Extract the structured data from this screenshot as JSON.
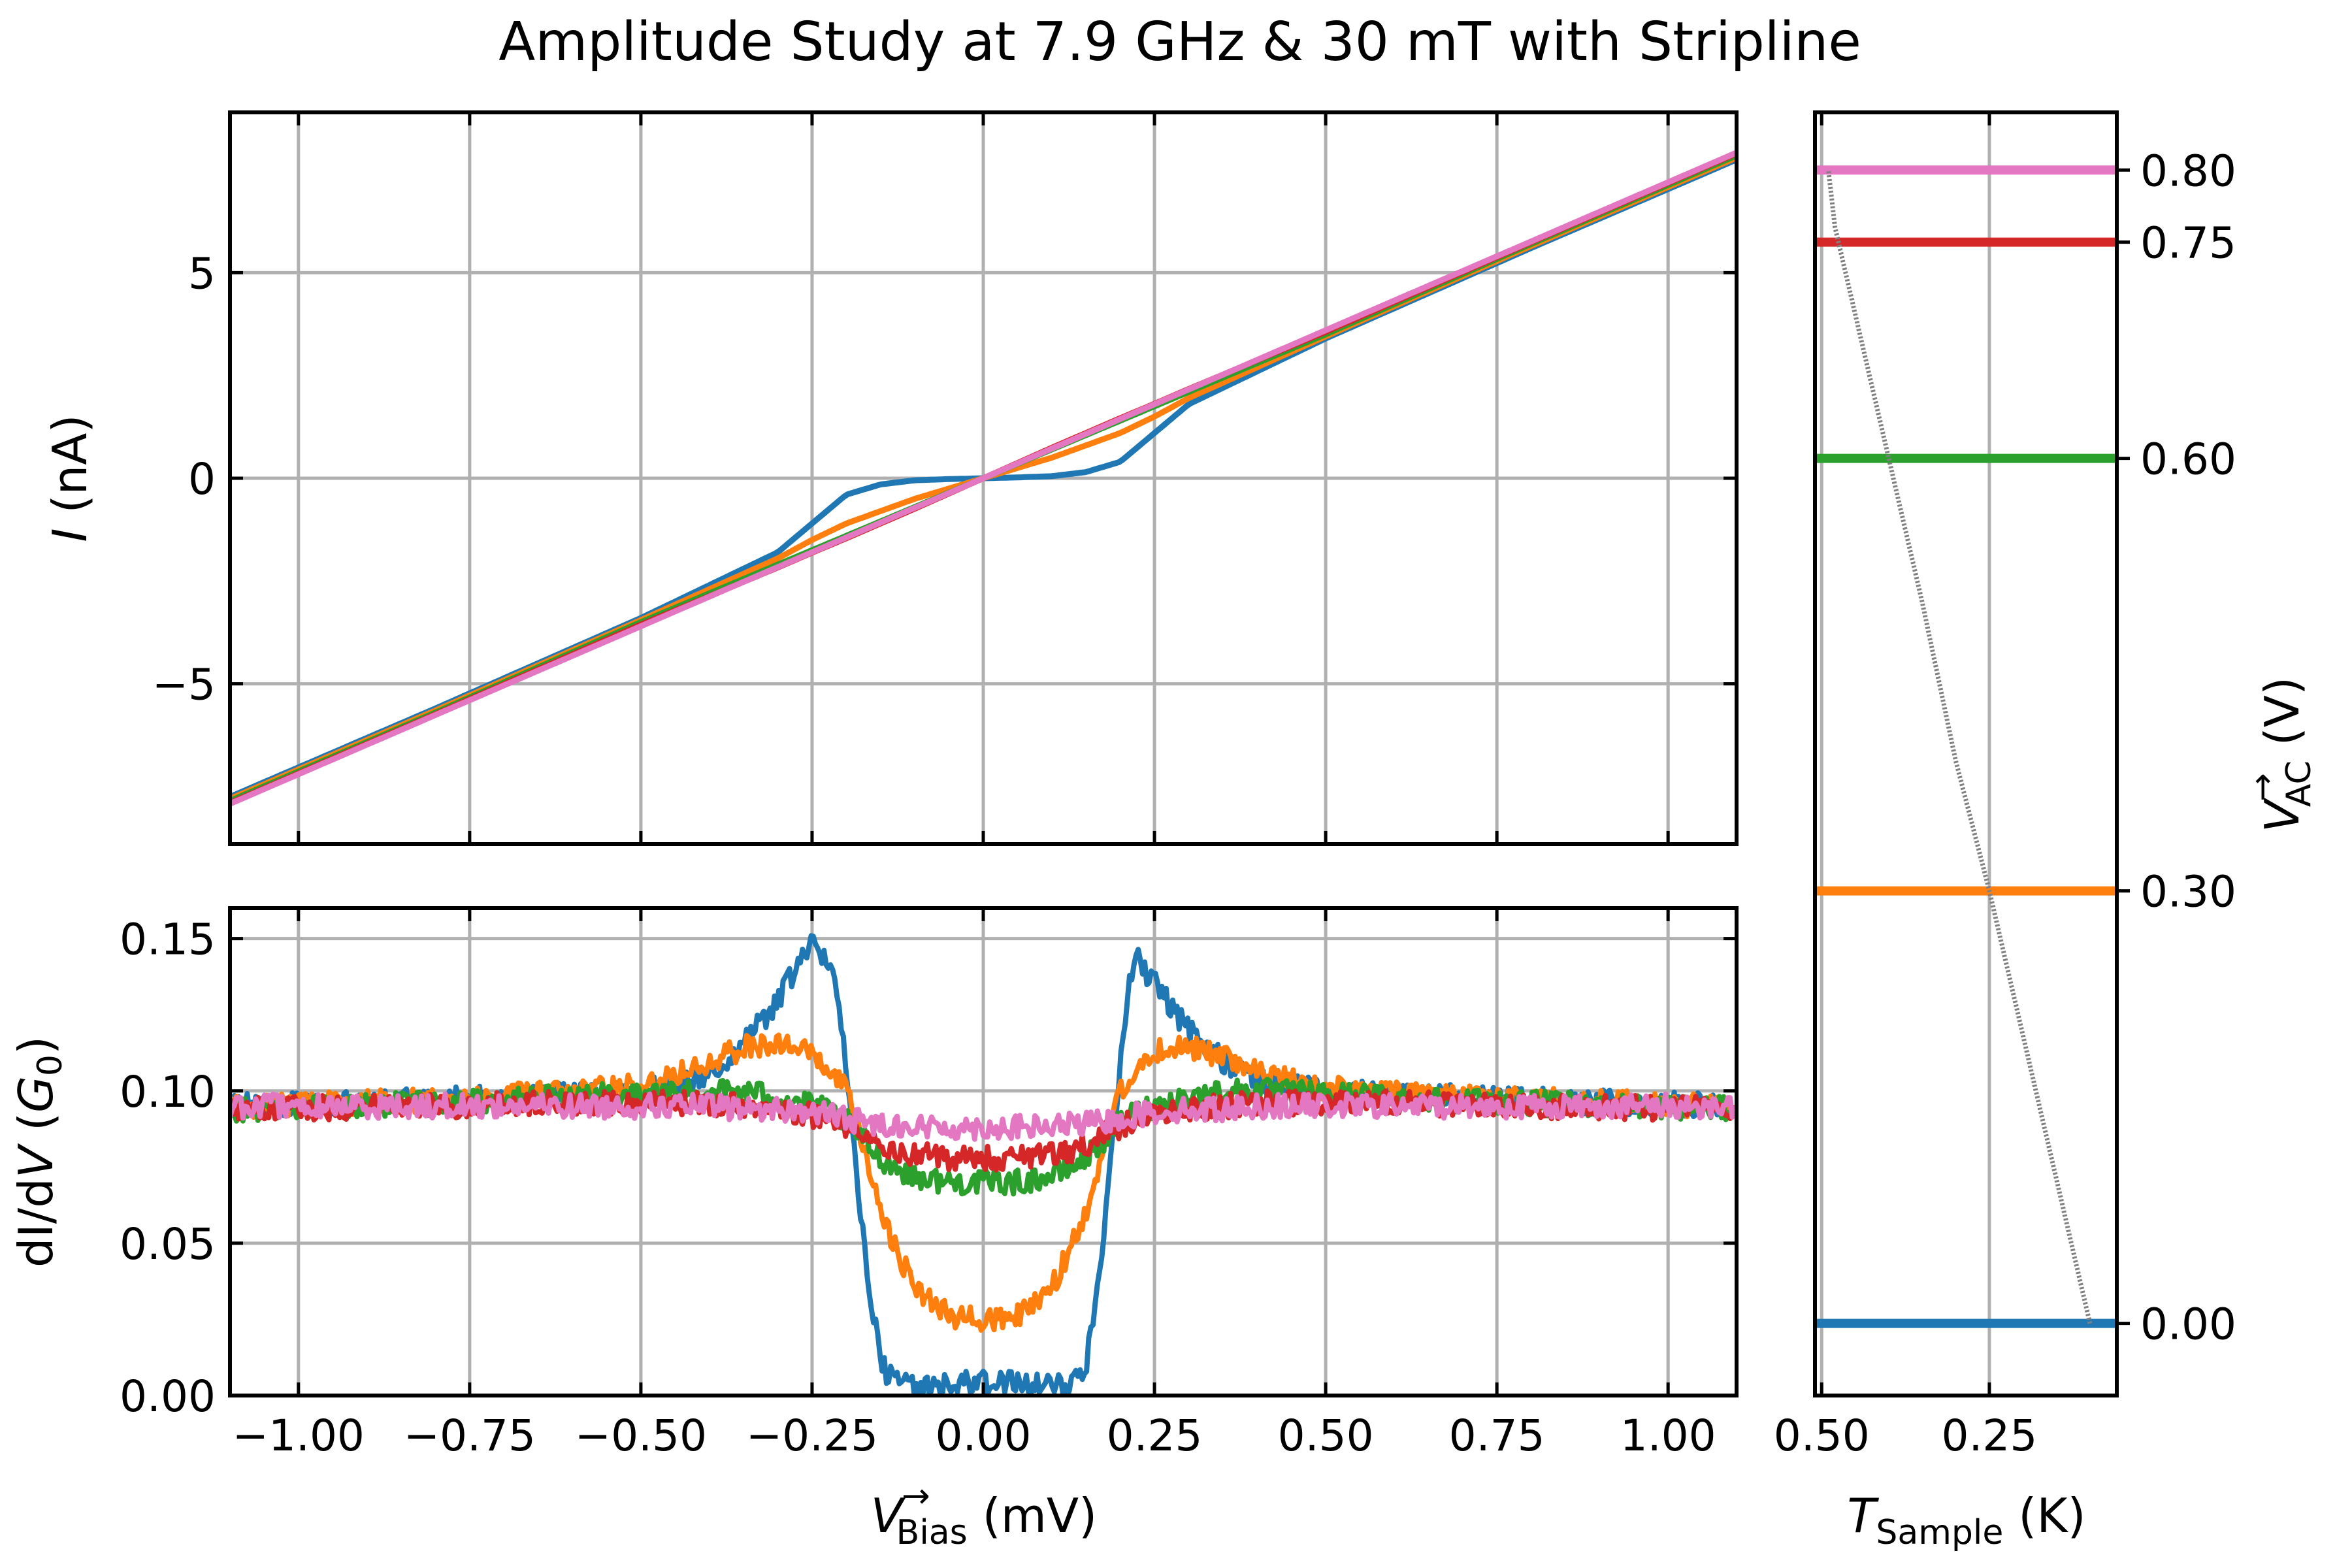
{
  "title": "Amplitude Study at 7.9 GHz & 30 mT with Stripline",
  "chart_data": [
    {
      "id": "iv",
      "type": "line",
      "ylabel": "I (nA)",
      "xlim": [
        -1.1,
        1.1
      ],
      "ylim": [
        -8.9,
        8.9
      ],
      "yticks": [
        "−5",
        "0",
        "5"
      ],
      "yticks_values": [
        -5,
        0,
        5
      ],
      "xticks_values": [
        -1.0,
        -0.75,
        -0.5,
        -0.25,
        0.0,
        0.25,
        0.5,
        0.75,
        1.0
      ],
      "grid": true,
      "x": [
        -1.1,
        -0.8,
        -0.5,
        -0.4,
        -0.3,
        -0.25,
        -0.2,
        -0.15,
        -0.1,
        -0.05,
        0.0,
        0.05,
        0.1,
        0.15,
        0.2,
        0.25,
        0.3,
        0.4,
        0.5,
        0.8,
        1.1
      ],
      "series": [
        {
          "vac": "0.00",
          "color": "#1f77b4",
          "values": [
            -7.75,
            -5.6,
            -3.4,
            -2.6,
            -1.8,
            -1.1,
            -0.4,
            -0.15,
            -0.05,
            -0.02,
            0.0,
            0.02,
            0.05,
            0.15,
            0.4,
            1.1,
            1.8,
            2.6,
            3.4,
            5.6,
            7.75
          ]
        },
        {
          "vac": "0.30",
          "color": "#ff7f0e",
          "values": [
            -7.8,
            -5.65,
            -3.45,
            -2.7,
            -1.95,
            -1.5,
            -1.1,
            -0.8,
            -0.5,
            -0.25,
            0.0,
            0.25,
            0.5,
            0.8,
            1.1,
            1.5,
            1.95,
            2.7,
            3.45,
            5.65,
            7.8
          ]
        },
        {
          "vac": "0.60",
          "color": "#2ca02c",
          "values": [
            -7.85,
            -5.7,
            -3.5,
            -2.8,
            -2.1,
            -1.75,
            -1.4,
            -1.05,
            -0.7,
            -0.35,
            0.0,
            0.35,
            0.7,
            1.05,
            1.4,
            1.75,
            2.1,
            2.8,
            3.5,
            5.7,
            7.85
          ]
        },
        {
          "vac": "0.75",
          "color": "#d62728",
          "values": [
            -7.9,
            -5.74,
            -3.56,
            -2.87,
            -2.17,
            -1.81,
            -1.46,
            -1.1,
            -0.74,
            -0.37,
            0.0,
            0.37,
            0.74,
            1.1,
            1.46,
            1.81,
            2.17,
            2.87,
            3.56,
            5.74,
            7.9
          ]
        },
        {
          "vac": "0.80",
          "color": "#e377c2",
          "values": [
            -7.92,
            -5.76,
            -3.6,
            -2.88,
            -2.16,
            -1.8,
            -1.44,
            -1.08,
            -0.72,
            -0.36,
            0.0,
            0.36,
            0.72,
            1.08,
            1.44,
            1.8,
            2.16,
            2.88,
            3.6,
            5.76,
            7.92
          ]
        }
      ]
    },
    {
      "id": "didv",
      "type": "line",
      "xlabel": "V→Bias (mV)",
      "ylabel": "dI/dV (G0)",
      "xlim": [
        -1.1,
        1.1
      ],
      "ylim": [
        0.0,
        0.16
      ],
      "yticks": [
        "0.00",
        "0.05",
        "0.10",
        "0.15"
      ],
      "yticks_values": [
        0.0,
        0.05,
        0.1,
        0.15
      ],
      "xticks": [
        "−1.00",
        "−0.75",
        "−0.50",
        "−0.25",
        "0.00",
        "0.25",
        "0.50",
        "0.75",
        "1.00"
      ],
      "xticks_values": [
        -1.0,
        -0.75,
        -0.5,
        -0.25,
        0.0,
        0.25,
        0.5,
        0.75,
        1.0
      ],
      "grid": true,
      "noise_amplitude": 0.004,
      "x": [
        -1.1,
        -0.8,
        -0.6,
        -0.5,
        -0.4,
        -0.35,
        -0.3,
        -0.25,
        -0.22,
        -0.2,
        -0.18,
        -0.15,
        -0.12,
        -0.1,
        -0.05,
        0.0,
        0.05,
        0.1,
        0.12,
        0.15,
        0.18,
        0.2,
        0.22,
        0.25,
        0.3,
        0.35,
        0.4,
        0.5,
        0.6,
        0.8,
        1.1
      ],
      "series": [
        {
          "vac": "0.00",
          "color": "#1f77b4",
          "values": [
            0.095,
            0.097,
            0.099,
            0.1,
            0.105,
            0.115,
            0.13,
            0.148,
            0.14,
            0.11,
            0.06,
            0.01,
            0.003,
            0.003,
            0.004,
            0.004,
            0.004,
            0.003,
            0.003,
            0.01,
            0.06,
            0.11,
            0.145,
            0.135,
            0.12,
            0.11,
            0.104,
            0.1,
            0.099,
            0.097,
            0.095
          ]
        },
        {
          "vac": "0.30",
          "color": "#ff7f0e",
          "values": [
            0.095,
            0.097,
            0.1,
            0.102,
            0.11,
            0.114,
            0.116,
            0.112,
            0.105,
            0.1,
            0.085,
            0.06,
            0.045,
            0.035,
            0.026,
            0.025,
            0.026,
            0.035,
            0.045,
            0.06,
            0.085,
            0.1,
            0.106,
            0.113,
            0.115,
            0.111,
            0.106,
            0.101,
            0.099,
            0.097,
            0.095
          ]
        },
        {
          "vac": "0.60",
          "color": "#2ca02c",
          "values": [
            0.094,
            0.096,
            0.098,
            0.099,
            0.1,
            0.1,
            0.098,
            0.095,
            0.093,
            0.09,
            0.085,
            0.078,
            0.074,
            0.072,
            0.07,
            0.07,
            0.07,
            0.072,
            0.074,
            0.078,
            0.085,
            0.09,
            0.093,
            0.095,
            0.098,
            0.1,
            0.1,
            0.099,
            0.098,
            0.096,
            0.094
          ]
        },
        {
          "vac": "0.75",
          "color": "#d62728",
          "values": [
            0.094,
            0.095,
            0.096,
            0.096,
            0.096,
            0.095,
            0.094,
            0.092,
            0.09,
            0.088,
            0.086,
            0.082,
            0.08,
            0.079,
            0.078,
            0.078,
            0.078,
            0.079,
            0.08,
            0.082,
            0.086,
            0.088,
            0.09,
            0.092,
            0.094,
            0.095,
            0.096,
            0.096,
            0.096,
            0.095,
            0.094
          ]
        },
        {
          "vac": "0.80",
          "color": "#e377c2",
          "values": [
            0.095,
            0.095,
            0.095,
            0.095,
            0.095,
            0.094,
            0.094,
            0.093,
            0.092,
            0.091,
            0.09,
            0.089,
            0.089,
            0.088,
            0.088,
            0.088,
            0.088,
            0.088,
            0.089,
            0.089,
            0.09,
            0.091,
            0.092,
            0.093,
            0.094,
            0.094,
            0.095,
            0.095,
            0.095,
            0.095,
            0.095
          ]
        }
      ]
    },
    {
      "id": "temp",
      "type": "line",
      "xlabel": "TSample (K)",
      "ylabel": "V→AC (V)",
      "xlim": [
        0.51,
        0.06
      ],
      "ylim": [
        -0.05,
        0.84
      ],
      "xticks": [
        "0.50",
        "0.25"
      ],
      "xticks_values": [
        0.5,
        0.25
      ],
      "yticks_right": [
        "0.00",
        "0.30",
        "0.60",
        "0.75",
        "0.80"
      ],
      "yticks_values": [
        0.0,
        0.3,
        0.6,
        0.75,
        0.8
      ],
      "grid": true,
      "levels": [
        {
          "vac": 0.0,
          "color": "#1f77b4"
        },
        {
          "vac": 0.3,
          "color": "#ff7f0e"
        },
        {
          "vac": 0.6,
          "color": "#2ca02c"
        },
        {
          "vac": 0.75,
          "color": "#d62728"
        },
        {
          "vac": 0.8,
          "color": "#e377c2"
        }
      ],
      "temperature_curve": {
        "color": "#808080",
        "x": [
          0.1,
          0.15,
          0.2,
          0.25,
          0.3,
          0.35,
          0.4,
          0.45,
          0.48,
          0.49
        ],
        "y": [
          0.0,
          0.1,
          0.2,
          0.3,
          0.39,
          0.5,
          0.6,
          0.7,
          0.76,
          0.8
        ]
      }
    }
  ]
}
